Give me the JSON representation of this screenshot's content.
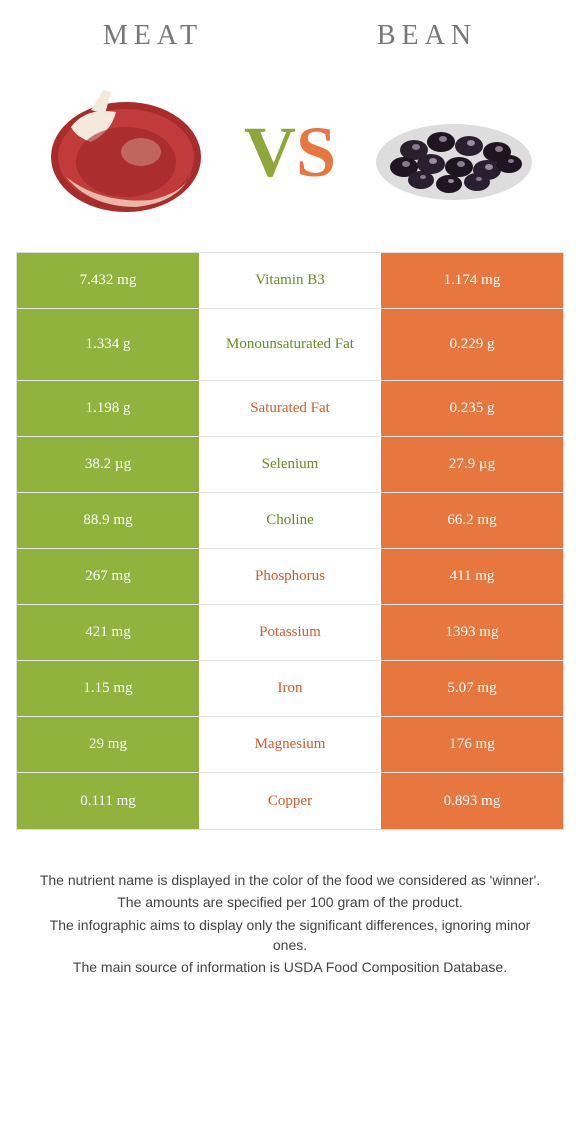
{
  "header": {
    "left_title": "Meat",
    "right_title": "Bean",
    "vs_v": "V",
    "vs_s": "S"
  },
  "colors": {
    "green": "#8fb33d",
    "orange": "#e8763f",
    "green_text": "#6c8a1f",
    "orange_text": "#d45a28"
  },
  "rows": [
    {
      "label": "Vitamin B3",
      "left": "7.432 mg",
      "right": "1.174 mg",
      "winner": "left",
      "taller": false
    },
    {
      "label": "Monounsaturated Fat",
      "left": "1.334 g",
      "right": "0.229 g",
      "winner": "left",
      "taller": true
    },
    {
      "label": "Saturated Fat",
      "left": "1.198 g",
      "right": "0.235 g",
      "winner": "right",
      "taller": false
    },
    {
      "label": "Selenium",
      "left": "38.2 µg",
      "right": "27.9 µg",
      "winner": "left",
      "taller": false
    },
    {
      "label": "Choline",
      "left": "88.9 mg",
      "right": "66.2 mg",
      "winner": "left",
      "taller": false
    },
    {
      "label": "Phosphorus",
      "left": "267 mg",
      "right": "411 mg",
      "winner": "right",
      "taller": false
    },
    {
      "label": "Potassium",
      "left": "421 mg",
      "right": "1393 mg",
      "winner": "right",
      "taller": false
    },
    {
      "label": "Iron",
      "left": "1.15 mg",
      "right": "5.07 mg",
      "winner": "right",
      "taller": false
    },
    {
      "label": "Magnesium",
      "left": "29 mg",
      "right": "176 mg",
      "winner": "right",
      "taller": false
    },
    {
      "label": "Copper",
      "left": "0.111 mg",
      "right": "0.893 mg",
      "winner": "right",
      "taller": false
    }
  ],
  "footer": {
    "line1": "The nutrient name is displayed in the color of the food we considered as 'winner'.",
    "line2": "The amounts are specified per 100 gram of the product.",
    "line3": "The infographic aims to display only the significant differences, ignoring minor ones.",
    "line4": "The main source of information is USDA Food Composition Database."
  }
}
